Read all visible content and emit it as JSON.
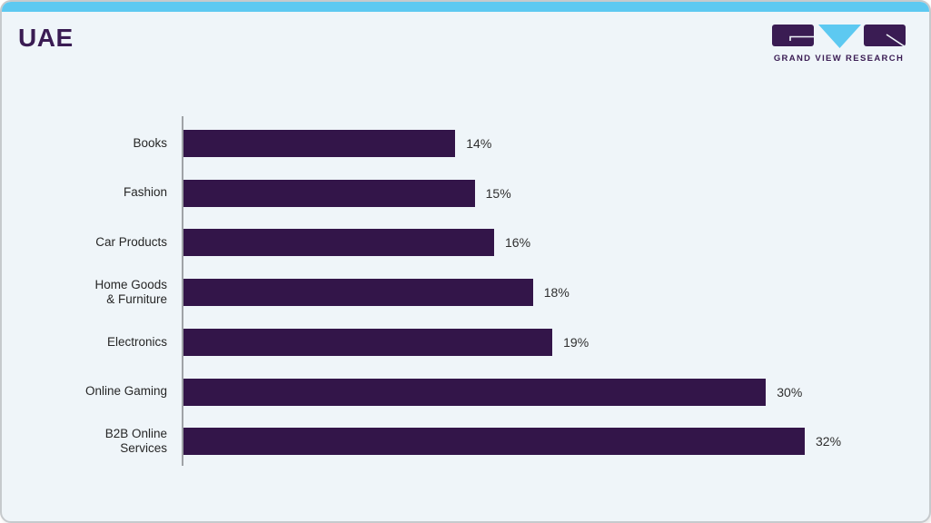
{
  "header": {
    "title": "UAE",
    "logo": {
      "brand": "GRAND VIEW RESEARCH",
      "icon": "gvr-logo"
    }
  },
  "colors": {
    "accent_blue": "#5dc9f1",
    "brand_purple": "#3a1c53",
    "bar_purple": "#331549",
    "card_background": "#eff5f9",
    "axis_gray": "#9fa3a7"
  },
  "chart_data": {
    "type": "bar",
    "orientation": "horizontal",
    "title": "UAE",
    "xlabel": "",
    "ylabel": "",
    "categories": [
      "Books",
      "Fashion",
      "Car Products",
      "Home Goods\n& Furniture",
      "Electronics",
      "Online Gaming",
      "B2B Online\nServices"
    ],
    "values": [
      14,
      15,
      16,
      18,
      19,
      30,
      32
    ],
    "value_labels": [
      "14%",
      "15%",
      "16%",
      "18%",
      "19%",
      "30%",
      "32%"
    ],
    "unit": "%",
    "xlim": [
      0,
      35
    ],
    "grid": false,
    "legend": false,
    "bar_color": "#331549",
    "value_label_position": "right-of-bar"
  }
}
